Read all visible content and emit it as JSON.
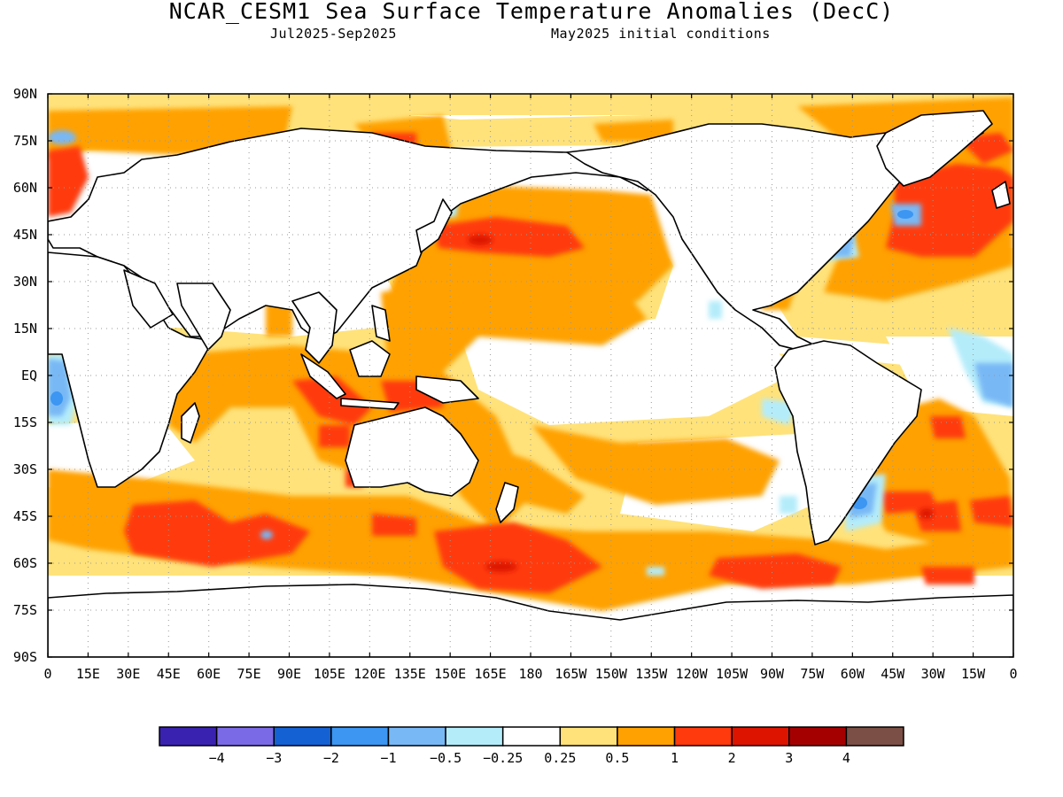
{
  "title": "NCAR_CESM1 Sea Surface Temperature Anomalies (DecC)",
  "subtitle_left": "Jul2025-Sep2025",
  "subtitle_right": "May2025 initial conditions",
  "lat_labels": [
    "90N",
    "75N",
    "60N",
    "45N",
    "30N",
    "15N",
    "EQ",
    "15S",
    "30S",
    "45S",
    "60S",
    "75S",
    "90S"
  ],
  "lon_labels": [
    "0",
    "15E",
    "30E",
    "45E",
    "60E",
    "75E",
    "90E",
    "105E",
    "120E",
    "135E",
    "150E",
    "165E",
    "180",
    "165W",
    "150W",
    "135W",
    "120W",
    "105W",
    "90W",
    "75W",
    "60W",
    "45W",
    "30W",
    "15W",
    "0"
  ],
  "colorbar": {
    "colors": [
      "#3a22b0",
      "#7b6ae6",
      "#1461d4",
      "#3c96f2",
      "#78b8f5",
      "#b4ecfa",
      "#ffffff",
      "#ffe27a",
      "#ffa100",
      "#ff3a0d",
      "#dd1400",
      "#a50000",
      "#7b4f45"
    ],
    "labels": [
      "-4",
      "-3",
      "-2",
      "-1",
      "-0.5",
      "-0.25",
      "0.25",
      "0.5",
      "1",
      "2",
      "3",
      "4"
    ]
  },
  "palette": {
    "weak_warm": "#ffe27a",
    "warm": "#ffa100",
    "strong_warm": "#ff3a0d",
    "very_strong_warm": "#dd1400",
    "weak_cool": "#b4ecfa",
    "cool": "#78b8f5",
    "strong_cool": "#3c96f2",
    "land": "#ffffff",
    "coastline": "#000000"
  }
}
